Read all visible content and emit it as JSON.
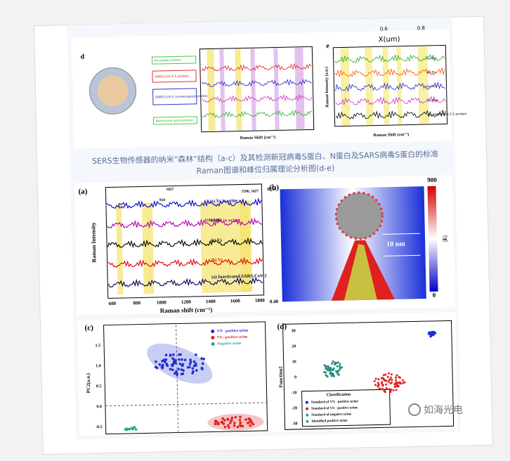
{
  "top_axis": {
    "label": "X(um)",
    "ticks": [
      "0.6",
      "0.8"
    ]
  },
  "figure_top": {
    "panel_d": {
      "label": "d",
      "legend": [
        "Envelope protein",
        "SARS-CoV-2 S protein",
        "SARS-CoV-2 nucleocapsid protein",
        "Membrane glycoprotein"
      ],
      "x_label": "Raman Shift (cm⁻¹)"
    },
    "panel_e": {
      "label": "e",
      "y_label": "Raman Intensity (a.u.)",
      "x_label": "Raman Shift (cm⁻¹)",
      "traces": [
        "Au-Tyr",
        "Au-Trp",
        "Au-His",
        "Au-Phe",
        "Au-SARS-CoV-2 S protein"
      ]
    }
  },
  "caption": [
    "SERS生物传感器的纳米“森林”结构（a-c）及其检测新冠病毒S蛋白、N蛋白及SARS病毒S蛋白的标准",
    "Raman图谱和峰位归属理论分析图(d-e)"
  ],
  "panel_a": {
    "label": "(a)",
    "y_label": "Raman Intensity",
    "x_label": "Raman shift (cm⁻¹)",
    "xticks": [
      "600",
      "800",
      "1000",
      "1200",
      "1400",
      "1600",
      "1800"
    ],
    "traces": [
      "(e) Vs in urine",
      "(d) Vs in urine",
      "(c) Vs",
      "(b) Vs",
      "(a) Inactivated SARS-CoV-2"
    ],
    "peaks": [
      "1027",
      "1596, 1627",
      "644",
      "950",
      "1310-1445"
    ]
  },
  "panel_b": {
    "label": "(b)",
    "scale_labels": [
      "900",
      "0"
    ],
    "y_labels": [
      "0.54",
      "0.48"
    ],
    "annotation": "10 nm",
    "colorbar_label": "|E|"
  },
  "panel_c": {
    "label": "(c)",
    "y_label": "PC2(a.u.)",
    "yticks": [
      "1.5",
      "1.0",
      "0.5",
      "0.0",
      "-0.5"
    ],
    "legend": [
      "VN - positive urine",
      "VS - positive urine",
      "Negative urine"
    ]
  },
  "panel_d2": {
    "label": "(d)",
    "y_label": "Function2",
    "yticks": [
      "30",
      "20",
      "10",
      "0",
      "-10",
      "-20",
      "-30"
    ],
    "legend_title": "Classification",
    "legend": [
      "Standard of VN - positive urine",
      "Standard of VS - positive urine",
      "Standard of negative urine",
      "Identified positive urine"
    ]
  },
  "watermark": "如海光电"
}
